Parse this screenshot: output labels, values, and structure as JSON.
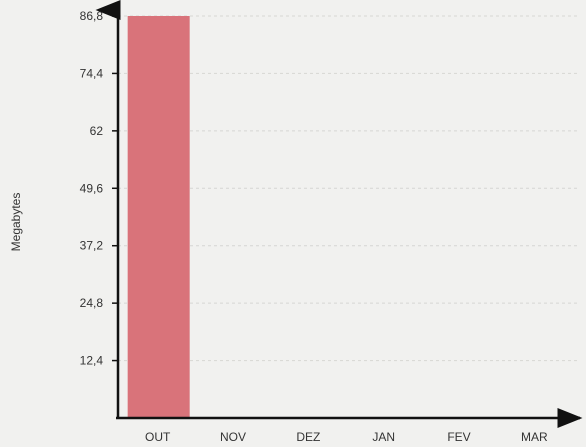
{
  "chart_data": {
    "type": "bar",
    "categories": [
      "OUT",
      "NOV",
      "DEZ",
      "JAN",
      "FEV",
      "MAR"
    ],
    "values": [
      86.8,
      0,
      0,
      0,
      0,
      0
    ],
    "title": "",
    "xlabel": "",
    "ylabel": "Megabytes",
    "ylim": [
      0,
      86.8
    ],
    "yticks": [
      "12,4",
      "24,8",
      "37,2",
      "49,6",
      "62",
      "74,4",
      "86,8"
    ],
    "ytick_values": [
      12.4,
      24.8,
      37.2,
      49.6,
      62,
      74.4,
      86.8
    ],
    "grid": true,
    "bar_color": "#d9737a",
    "axis_color": "#111111"
  }
}
